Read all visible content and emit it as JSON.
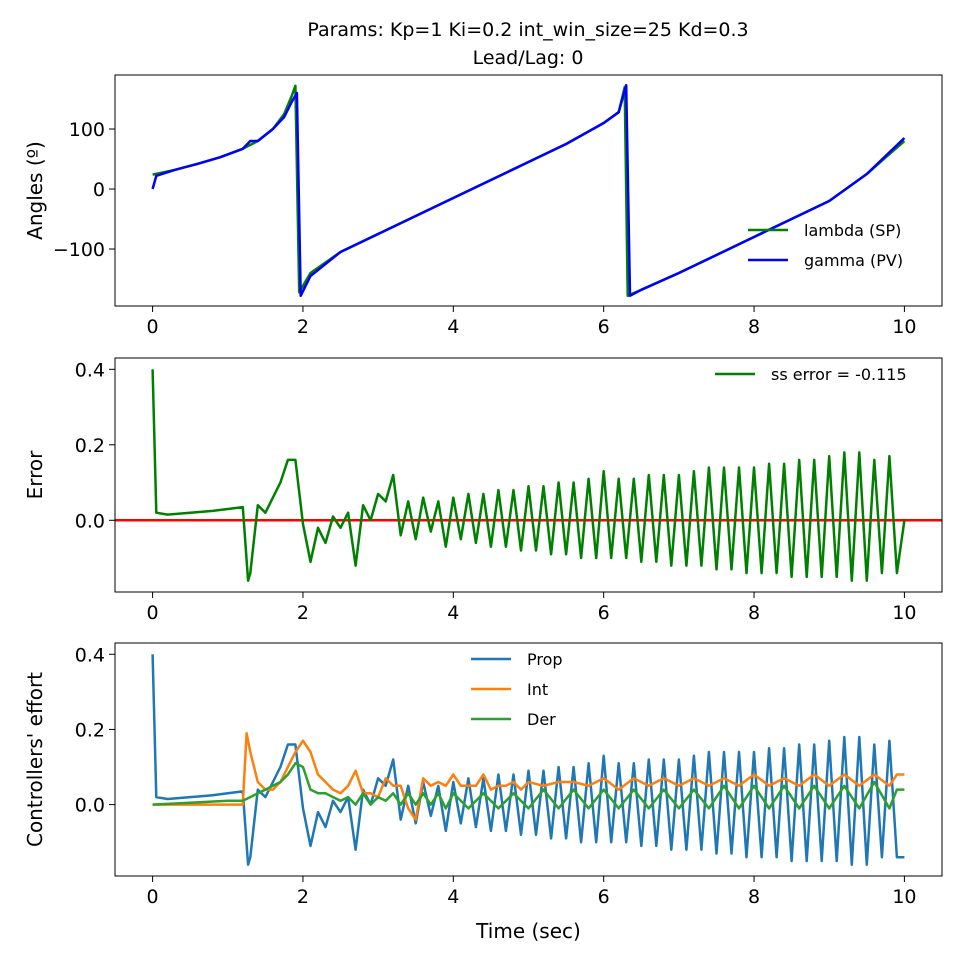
{
  "figure": {
    "title_line1": "Params: Kp=1 Ki=0.2 int_win_size=25 Kd=0.3",
    "title_line2": "Lead/Lag: 0"
  },
  "chart_data": [
    {
      "type": "line",
      "ylabel": "Angles (º)",
      "xlim": [
        -0.5,
        10.5
      ],
      "ylim": [
        -195,
        190
      ],
      "xticks": [
        0,
        2,
        4,
        6,
        8,
        10
      ],
      "yticks": [
        100,
        0,
        -100
      ],
      "ytick_labels": [
        "100",
        "0",
        "−100"
      ],
      "legend_position": "lower-right",
      "series": [
        {
          "name": "lambda (SP)",
          "color": "#008000",
          "x": [
            0,
            0.3,
            0.6,
            0.9,
            1.2,
            1.4,
            1.6,
            1.75,
            1.85,
            1.9,
            1.95,
            2.1,
            2.5,
            3.0,
            3.5,
            4.0,
            4.5,
            5.0,
            5.5,
            6.0,
            6.2,
            6.28,
            6.32,
            6.5,
            7.0,
            7.5,
            8.0,
            8.5,
            9.0,
            9.5,
            10.0
          ],
          "y": [
            24,
            32,
            42,
            53,
            67,
            80,
            100,
            125,
            155,
            172,
            -172,
            -140,
            -105,
            -75,
            -45,
            -15,
            15,
            45,
            75,
            110,
            128,
            170,
            -178,
            -168,
            -140,
            -110,
            -80,
            -50,
            -20,
            25,
            80
          ]
        },
        {
          "name": "gamma (PV)",
          "color": "#0000ff",
          "x": [
            0,
            0.05,
            0.3,
            0.6,
            0.9,
            1.2,
            1.3,
            1.4,
            1.6,
            1.75,
            1.85,
            1.92,
            1.97,
            2.1,
            2.5,
            3.0,
            3.5,
            4.0,
            4.5,
            5.0,
            5.5,
            6.0,
            6.2,
            6.3,
            6.35,
            6.5,
            7.0,
            7.5,
            8.0,
            8.5,
            9.0,
            9.5,
            10.0
          ],
          "y": [
            0,
            22,
            32,
            42,
            53,
            67,
            80,
            80,
            100,
            120,
            145,
            160,
            -178,
            -145,
            -105,
            -75,
            -45,
            -15,
            15,
            45,
            75,
            110,
            128,
            173,
            -178,
            -168,
            -140,
            -110,
            -80,
            -50,
            -20,
            25,
            85
          ]
        }
      ]
    },
    {
      "type": "line",
      "ylabel": "Error",
      "xlim": [
        -0.5,
        10.5
      ],
      "ylim": [
        -0.19,
        0.43
      ],
      "xticks": [
        0,
        2,
        4,
        6,
        8,
        10
      ],
      "yticks": [
        0.4,
        0.2,
        0.0
      ],
      "ytick_labels": [
        "0.4",
        "0.2",
        "0.0"
      ],
      "hline": {
        "y": 0,
        "color": "#ff0000"
      },
      "legend_position": "top-right",
      "series": [
        {
          "name": "ss error = -0.115",
          "color": "#008000",
          "x": [
            0,
            0.05,
            0.2,
            0.5,
            0.8,
            1.0,
            1.2,
            1.27,
            1.3,
            1.4,
            1.5,
            1.6,
            1.7,
            1.8,
            1.9,
            2.0,
            2.1,
            2.2,
            2.3,
            2.4,
            2.5,
            2.6,
            2.7,
            2.8,
            2.9,
            3.0,
            3.1,
            3.2,
            3.3,
            3.4,
            3.5,
            3.6,
            3.7,
            3.8,
            3.9,
            4.0,
            4.1,
            4.2,
            4.3,
            4.4,
            4.5,
            4.6,
            4.7,
            4.8,
            4.9,
            5.0,
            5.1,
            5.2,
            5.3,
            5.4,
            5.5,
            5.6,
            5.7,
            5.8,
            5.9,
            6.0,
            6.1,
            6.2,
            6.3,
            6.4,
            6.5,
            6.6,
            6.7,
            6.8,
            6.9,
            7.0,
            7.1,
            7.2,
            7.3,
            7.4,
            7.5,
            7.6,
            7.7,
            7.8,
            7.9,
            8.0,
            8.1,
            8.2,
            8.3,
            8.4,
            8.5,
            8.6,
            8.7,
            8.8,
            8.9,
            9.0,
            9.1,
            9.2,
            9.3,
            9.4,
            9.5,
            9.6,
            9.7,
            9.8,
            9.9,
            10.0
          ],
          "y": [
            0.4,
            0.02,
            0.015,
            0.02,
            0.025,
            0.03,
            0.035,
            -0.16,
            -0.14,
            0.04,
            0.02,
            0.06,
            0.1,
            0.16,
            0.16,
            -0.01,
            -0.11,
            -0.02,
            -0.06,
            0.01,
            -0.02,
            0.02,
            -0.12,
            0.04,
            0.0,
            0.07,
            0.05,
            0.12,
            -0.04,
            0.05,
            -0.05,
            0.06,
            -0.03,
            0.05,
            -0.07,
            0.06,
            -0.05,
            0.07,
            -0.06,
            0.07,
            -0.07,
            0.08,
            -0.07,
            0.08,
            -0.08,
            0.09,
            -0.08,
            0.09,
            -0.09,
            0.1,
            -0.09,
            0.1,
            -0.1,
            0.11,
            -0.1,
            0.13,
            -0.1,
            0.11,
            -0.1,
            0.11,
            -0.11,
            0.12,
            -0.11,
            0.12,
            -0.12,
            0.12,
            -0.12,
            0.13,
            -0.12,
            0.14,
            -0.13,
            0.14,
            -0.13,
            0.14,
            -0.14,
            0.14,
            -0.14,
            0.15,
            -0.14,
            0.15,
            -0.15,
            0.16,
            -0.15,
            0.16,
            -0.15,
            0.17,
            -0.15,
            0.18,
            -0.16,
            0.18,
            -0.16,
            0.16,
            -0.14,
            0.17,
            -0.14,
            0.0
          ]
        }
      ]
    },
    {
      "type": "line",
      "ylabel": "Controllers' effort",
      "xlabel": "Time (sec)",
      "xlim": [
        -0.5,
        10.5
      ],
      "ylim": [
        -0.19,
        0.43
      ],
      "xticks": [
        0,
        2,
        4,
        6,
        8,
        10
      ],
      "yticks": [
        0.4,
        0.2,
        0.0
      ],
      "ytick_labels": [
        "0.4",
        "0.2",
        "0.0"
      ],
      "legend_position": "top-center",
      "series": [
        {
          "name": "Prop",
          "color": "#1f77b4",
          "x": [
            0,
            0.05,
            0.2,
            0.5,
            0.8,
            1.0,
            1.2,
            1.27,
            1.3,
            1.4,
            1.5,
            1.6,
            1.7,
            1.8,
            1.9,
            2.0,
            2.1,
            2.2,
            2.3,
            2.4,
            2.5,
            2.6,
            2.7,
            2.8,
            2.9,
            3.0,
            3.1,
            3.2,
            3.3,
            3.4,
            3.5,
            3.6,
            3.7,
            3.8,
            3.9,
            4.0,
            4.1,
            4.2,
            4.3,
            4.4,
            4.5,
            4.6,
            4.7,
            4.8,
            4.9,
            5.0,
            5.1,
            5.2,
            5.3,
            5.4,
            5.5,
            5.6,
            5.7,
            5.8,
            5.9,
            6.0,
            6.1,
            6.2,
            6.3,
            6.4,
            6.5,
            6.6,
            6.7,
            6.8,
            6.9,
            7.0,
            7.1,
            7.2,
            7.3,
            7.4,
            7.5,
            7.6,
            7.7,
            7.8,
            7.9,
            8.0,
            8.1,
            8.2,
            8.3,
            8.4,
            8.5,
            8.6,
            8.7,
            8.8,
            8.9,
            9.0,
            9.1,
            9.2,
            9.3,
            9.4,
            9.5,
            9.6,
            9.7,
            9.8,
            9.9,
            10.0
          ],
          "y": [
            0.4,
            0.02,
            0.015,
            0.02,
            0.025,
            0.03,
            0.035,
            -0.16,
            -0.14,
            0.04,
            0.02,
            0.06,
            0.1,
            0.16,
            0.16,
            -0.01,
            -0.11,
            -0.02,
            -0.06,
            0.01,
            -0.02,
            0.02,
            -0.12,
            0.04,
            0.0,
            0.07,
            0.05,
            0.12,
            -0.04,
            0.05,
            -0.05,
            0.06,
            -0.03,
            0.05,
            -0.07,
            0.06,
            -0.05,
            0.07,
            -0.06,
            0.07,
            -0.07,
            0.08,
            -0.07,
            0.08,
            -0.08,
            0.09,
            -0.08,
            0.09,
            -0.09,
            0.1,
            -0.09,
            0.1,
            -0.1,
            0.11,
            -0.1,
            0.13,
            -0.1,
            0.11,
            -0.1,
            0.11,
            -0.11,
            0.12,
            -0.11,
            0.12,
            -0.12,
            0.12,
            -0.12,
            0.13,
            -0.12,
            0.14,
            -0.13,
            0.14,
            -0.13,
            0.14,
            -0.14,
            0.14,
            -0.14,
            0.15,
            -0.14,
            0.15,
            -0.15,
            0.16,
            -0.15,
            0.16,
            -0.15,
            0.17,
            -0.15,
            0.18,
            -0.16,
            0.18,
            -0.16,
            0.16,
            -0.14,
            0.17,
            -0.14,
            -0.14
          ]
        },
        {
          "name": "Int",
          "color": "#ff7f0e",
          "x": [
            0,
            0.5,
            1.0,
            1.2,
            1.25,
            1.3,
            1.4,
            1.5,
            1.6,
            1.7,
            1.8,
            1.9,
            2.0,
            2.1,
            2.2,
            2.3,
            2.4,
            2.5,
            2.6,
            2.7,
            2.8,
            2.9,
            3.0,
            3.1,
            3.2,
            3.3,
            3.4,
            3.5,
            3.6,
            3.7,
            3.8,
            3.9,
            4.0,
            4.1,
            4.2,
            4.3,
            4.4,
            4.5,
            4.6,
            4.7,
            4.8,
            4.9,
            5.0,
            5.2,
            5.4,
            5.6,
            5.8,
            6.0,
            6.2,
            6.4,
            6.6,
            6.8,
            7.0,
            7.2,
            7.4,
            7.6,
            7.8,
            8.0,
            8.2,
            8.4,
            8.6,
            8.8,
            9.0,
            9.2,
            9.4,
            9.6,
            9.8,
            9.9,
            10.0
          ],
          "y": [
            0,
            0,
            0,
            0,
            0.19,
            0.14,
            0.06,
            0.04,
            0.04,
            0.06,
            0.1,
            0.14,
            0.17,
            0.14,
            0.08,
            0.06,
            0.04,
            0.03,
            0.05,
            0.09,
            0.03,
            0.03,
            0.02,
            0.07,
            0.05,
            0.05,
            -0.01,
            -0.04,
            0.07,
            0.05,
            0.06,
            0.05,
            0.08,
            0.05,
            0.05,
            0.05,
            0.08,
            0.04,
            0.05,
            0.05,
            0.06,
            0.04,
            0.06,
            0.05,
            0.06,
            0.06,
            0.05,
            0.07,
            0.04,
            0.07,
            0.05,
            0.07,
            0.05,
            0.07,
            0.05,
            0.07,
            0.05,
            0.08,
            0.05,
            0.07,
            0.05,
            0.08,
            0.05,
            0.08,
            0.05,
            0.08,
            0.05,
            0.08,
            0.08
          ]
        },
        {
          "name": "Der",
          "color": "#2ca02c",
          "x": [
            0,
            0.5,
            1.0,
            1.2,
            1.3,
            1.4,
            1.5,
            1.6,
            1.7,
            1.8,
            1.9,
            2.0,
            2.1,
            2.2,
            2.3,
            2.4,
            2.5,
            2.6,
            2.7,
            2.8,
            2.9,
            3.0,
            3.1,
            3.2,
            3.3,
            3.4,
            3.5,
            3.6,
            3.7,
            3.8,
            3.9,
            4.0,
            4.2,
            4.4,
            4.6,
            4.8,
            5.0,
            5.2,
            5.4,
            5.6,
            5.8,
            6.0,
            6.2,
            6.4,
            6.6,
            6.8,
            7.0,
            7.2,
            7.4,
            7.6,
            7.8,
            8.0,
            8.2,
            8.4,
            8.6,
            8.8,
            9.0,
            9.2,
            9.4,
            9.6,
            9.8,
            9.9,
            10.0
          ],
          "y": [
            0,
            0.005,
            0.01,
            0.01,
            0.02,
            0.03,
            0.04,
            0.05,
            0.06,
            0.08,
            0.11,
            0.1,
            0.04,
            0.03,
            0.03,
            0.02,
            0.01,
            0.02,
            0.0,
            0.03,
            0.0,
            0.02,
            0.01,
            0.03,
            0.0,
            0.03,
            0.0,
            0.03,
            0.0,
            0.03,
            -0.01,
            0.03,
            -0.01,
            0.03,
            -0.01,
            0.03,
            -0.01,
            0.04,
            -0.01,
            0.04,
            -0.01,
            0.04,
            -0.01,
            0.04,
            -0.01,
            0.04,
            -0.01,
            0.04,
            -0.01,
            0.05,
            -0.01,
            0.05,
            -0.01,
            0.05,
            -0.01,
            0.05,
            -0.01,
            0.05,
            -0.01,
            0.06,
            -0.01,
            0.04,
            0.04
          ]
        }
      ]
    }
  ]
}
